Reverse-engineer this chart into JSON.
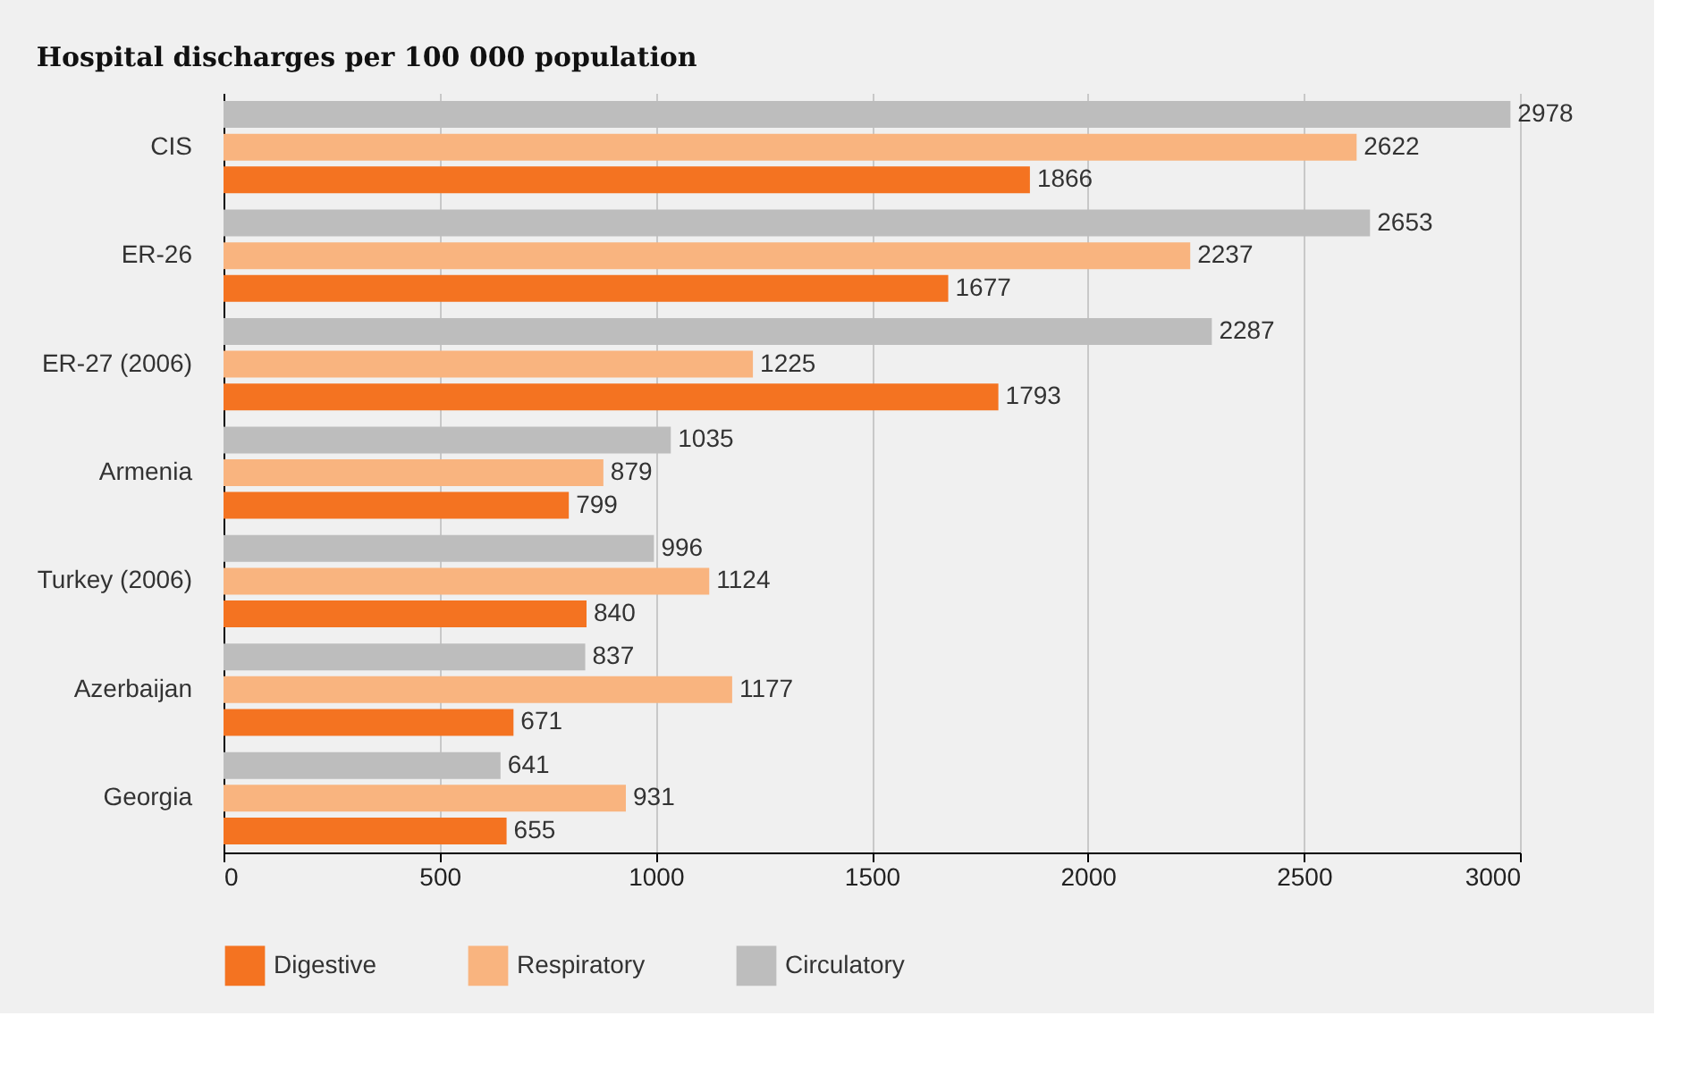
{
  "chart_data": {
    "type": "bar",
    "orientation": "horizontal",
    "title": "Hospital discharges per 100 000 population",
    "categories": [
      "CIS",
      "ER-26",
      "ER-27 (2006)",
      "Armenia",
      "Turkey (2006)",
      "Azerbaijan",
      "Georgia"
    ],
    "series": [
      {
        "name": "Digestive",
        "color": "#f47321",
        "values": [
          1866,
          1677,
          1793,
          799,
          840,
          671,
          655
        ]
      },
      {
        "name": "Respiratory",
        "color": "#f9b47f",
        "values": [
          2622,
          2237,
          1225,
          879,
          1124,
          1177,
          931
        ]
      },
      {
        "name": "Circulatory",
        "color": "#bdbdbd",
        "values": [
          2978,
          2653,
          2287,
          1035,
          996,
          837,
          641
        ]
      }
    ],
    "xlim": [
      0,
      3000
    ],
    "xticks": [
      0,
      500,
      1000,
      1500,
      2000,
      2500,
      3000
    ],
    "grid": "x",
    "legend": "bottom",
    "data_labels": true
  }
}
